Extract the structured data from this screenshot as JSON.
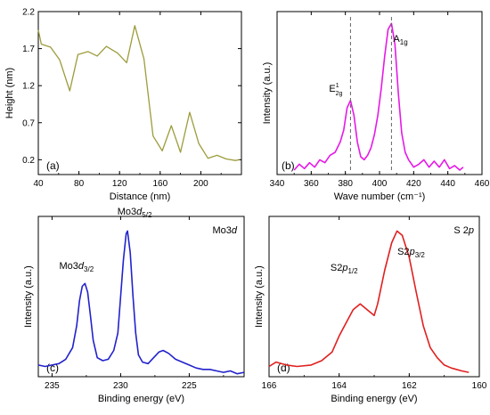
{
  "chart_data": [
    {
      "type": "line",
      "panel_label": "(a)",
      "title": "",
      "xlabel": "Distance (nm)",
      "ylabel": "Height (nm)",
      "xlim": [
        40,
        240
      ],
      "ylim": [
        0,
        2.2
      ],
      "xticks": [
        40,
        80,
        120,
        160,
        200
      ],
      "xtick_labels": [
        "40",
        "80",
        "120",
        "160",
        "200"
      ],
      "yticks": [
        0.2,
        0.7,
        1.2,
        1.7,
        2.2
      ],
      "ytick_labels": [
        "0.2",
        "0.7",
        "1.2",
        "1.7",
        "2.2"
      ],
      "color": "#9c9c3c",
      "series": [
        {
          "x": [
            40,
            43,
            52,
            61,
            71,
            79,
            89,
            98,
            107,
            118,
            127,
            135,
            144,
            153,
            162,
            171,
            180,
            189,
            198,
            207,
            216,
            225,
            234,
            238
          ],
          "y": [
            1.95,
            1.76,
            1.72,
            1.55,
            1.13,
            1.62,
            1.66,
            1.6,
            1.73,
            1.64,
            1.51,
            2.01,
            1.56,
            0.52,
            0.32,
            0.66,
            0.3,
            0.84,
            0.42,
            0.22,
            0.26,
            0.21,
            0.19,
            0.2
          ]
        }
      ]
    },
    {
      "type": "line",
      "panel_label": "(b)",
      "title": "",
      "xlabel": "Wave number (cm⁻¹)",
      "ylabel": "Intensity (a.u.)",
      "xlim": [
        340,
        460
      ],
      "xticks": [
        340,
        360,
        380,
        400,
        420,
        440,
        460
      ],
      "xtick_labels": [
        "340",
        "360",
        "380",
        "400",
        "420",
        "440",
        "460"
      ],
      "ylim": [
        0,
        1.1
      ],
      "color": "#e619e6",
      "annotations": [
        {
          "label": "E",
          "sup": "1",
          "sub": "2g",
          "x": 383
        },
        {
          "label": "A",
          "sub": "1g",
          "x": 407
        }
      ],
      "series": [
        {
          "x": [
            350,
            353,
            356,
            359,
            362,
            365,
            368,
            371,
            374,
            377,
            379,
            381,
            383,
            385,
            387,
            389,
            391,
            393,
            395,
            397,
            399,
            401,
            403,
            405,
            407,
            409,
            411,
            413,
            415,
            417,
            420,
            423,
            426,
            429,
            432,
            435,
            438,
            441,
            444,
            447,
            449
          ],
          "y": [
            0.03,
            0.07,
            0.04,
            0.08,
            0.05,
            0.1,
            0.08,
            0.13,
            0.15,
            0.22,
            0.3,
            0.45,
            0.5,
            0.4,
            0.22,
            0.12,
            0.1,
            0.13,
            0.18,
            0.27,
            0.4,
            0.58,
            0.8,
            0.98,
            1.02,
            0.88,
            0.55,
            0.28,
            0.15,
            0.1,
            0.05,
            0.07,
            0.1,
            0.05,
            0.09,
            0.05,
            0.1,
            0.04,
            0.06,
            0.03,
            0.05
          ]
        }
      ]
    },
    {
      "type": "line",
      "panel_label": "(c)",
      "title": "Mo3d",
      "xlabel": "Binding energy (eV)",
      "ylabel": "Intensity (a.u.)",
      "xlim": [
        236,
        221
      ],
      "xticks": [
        235,
        230,
        225
      ],
      "xtick_labels": [
        "235",
        "230",
        "225"
      ],
      "ylim": [
        0,
        1.1
      ],
      "color": "#2222cc",
      "annotations": [
        {
          "label": "Mo3",
          "italic": "d",
          "sub": "3/2",
          "x": 232.7
        },
        {
          "label": "Mo3",
          "italic": "d",
          "sub": "5/2",
          "x": 229.5
        }
      ],
      "series": [
        {
          "x": [
            236,
            235.5,
            235,
            234.5,
            234,
            233.5,
            233.2,
            233,
            232.8,
            232.6,
            232.4,
            232.2,
            232,
            231.7,
            231.3,
            230.9,
            230.5,
            230.2,
            230,
            229.8,
            229.6,
            229.5,
            229.3,
            229.1,
            228.9,
            228.7,
            228.4,
            228,
            227.6,
            227.2,
            226.9,
            226.5,
            226,
            225.5,
            225,
            224.5,
            224,
            223.5,
            223,
            222.5,
            222,
            221.5,
            221
          ],
          "y": [
            0.08,
            0.07,
            0.08,
            0.09,
            0.12,
            0.2,
            0.35,
            0.52,
            0.62,
            0.64,
            0.58,
            0.42,
            0.25,
            0.13,
            0.11,
            0.12,
            0.18,
            0.3,
            0.55,
            0.8,
            0.98,
            1.0,
            0.85,
            0.55,
            0.3,
            0.15,
            0.1,
            0.09,
            0.13,
            0.17,
            0.18,
            0.16,
            0.12,
            0.1,
            0.08,
            0.06,
            0.05,
            0.05,
            0.04,
            0.03,
            0.04,
            0.02,
            0.03
          ]
        }
      ]
    },
    {
      "type": "line",
      "panel_label": "(d)",
      "title": "S 2p",
      "xlabel": "Binding energy (eV)",
      "ylabel": "Intensity (a.u.)",
      "xlim": [
        166,
        160
      ],
      "xticks": [
        166,
        164,
        162,
        160
      ],
      "xtick_labels": [
        "166",
        "164",
        "162",
        "160"
      ],
      "ylim": [
        0,
        1.1
      ],
      "color": "#e02020",
      "annotations": [
        {
          "label": "S2",
          "italic": "p",
          "sub": "1/2",
          "x": 163.4
        },
        {
          "label": "S2",
          "italic": "p",
          "sub": "3/2",
          "x": 162.2
        }
      ],
      "series": [
        {
          "x": [
            166,
            165.8,
            165.5,
            165.2,
            164.8,
            164.5,
            164.2,
            164,
            163.8,
            163.6,
            163.4,
            163.2,
            163.0,
            162.9,
            162.7,
            162.5,
            162.35,
            162.2,
            162.0,
            161.8,
            161.6,
            161.4,
            161.2,
            161.0,
            160.8,
            160.5,
            160.3
          ],
          "y": [
            0.07,
            0.1,
            0.08,
            0.07,
            0.08,
            0.11,
            0.17,
            0.28,
            0.37,
            0.46,
            0.5,
            0.46,
            0.42,
            0.5,
            0.73,
            0.92,
            1.0,
            0.97,
            0.82,
            0.58,
            0.35,
            0.2,
            0.13,
            0.08,
            0.06,
            0.04,
            0.03
          ]
        }
      ]
    }
  ]
}
